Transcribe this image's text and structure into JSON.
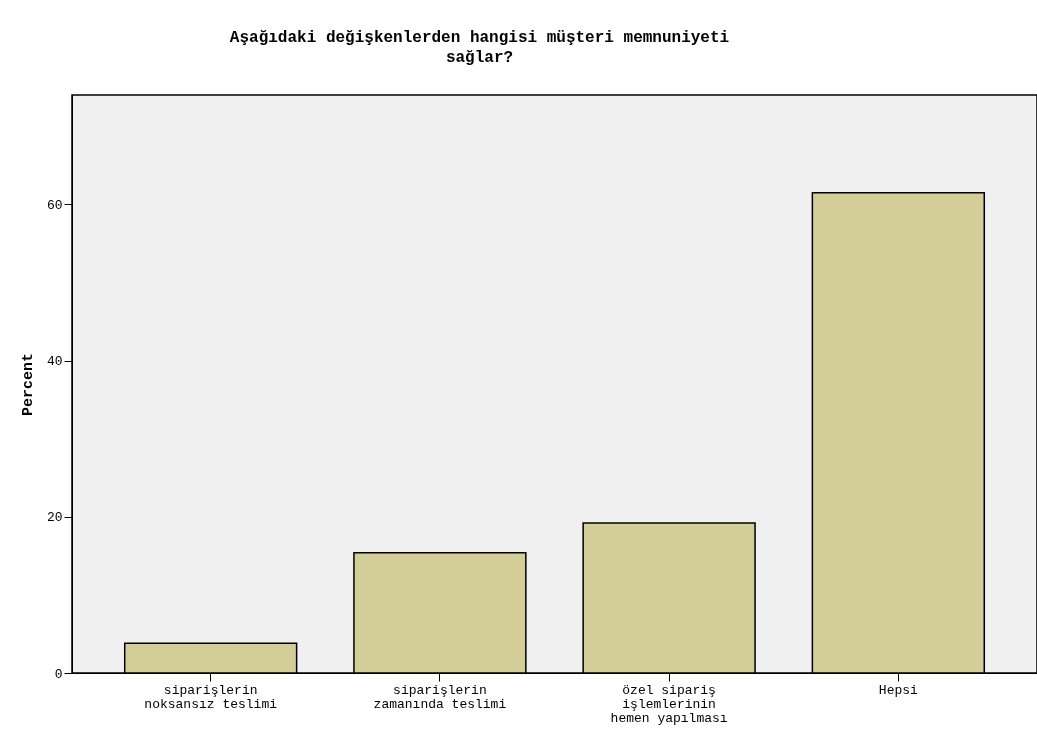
{
  "chart_data": {
    "type": "bar",
    "title": "Aşağıdaki değişkenlerden hangisi müşteri memnuniyeti sağlar?",
    "ylabel": "Percent",
    "categories": [
      "siparişlerin noksansız teslimi",
      "siparişlerin zamanında teslimi",
      "özel sipariş işlemlerinin hemen yapılması",
      "Hepsi"
    ],
    "values": [
      3.8,
      15.4,
      19.2,
      61.5
    ],
    "color": "#d3ce97",
    "ylim": [
      0,
      74
    ],
    "yticks": [
      0,
      20,
      40,
      60
    ],
    "grid": false
  }
}
